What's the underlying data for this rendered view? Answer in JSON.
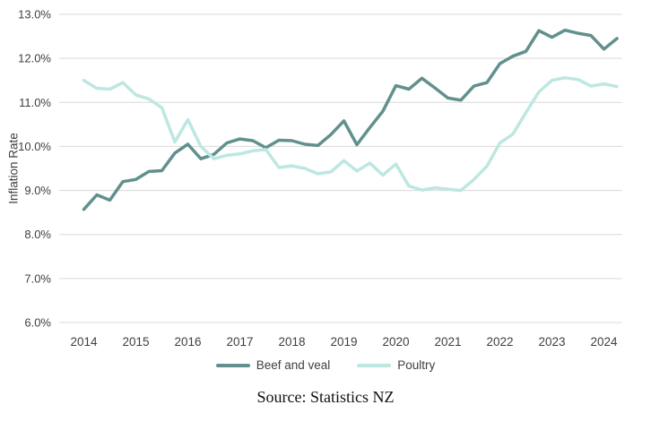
{
  "chart_data": {
    "type": "line",
    "title": "",
    "ylabel": "Inflation Rate",
    "xlabel": "",
    "frequency": "quarterly",
    "x_start": "2014 Q1",
    "x_end": "2024 Q2",
    "ylim": [
      6,
      13
    ],
    "grid": "horizontal",
    "legend_position": "bottom",
    "gridline_color": "#d9d9d9",
    "axis_text_color": "#404040",
    "y_tick_labels": [
      "6.0%",
      "7.0%",
      "8.0%",
      "9.0%",
      "10.0%",
      "11.0%",
      "12.0%",
      "13.0%"
    ],
    "x_tick_labels": [
      "2014",
      "2015",
      "2016",
      "2017",
      "2018",
      "2019",
      "2020",
      "2021",
      "2022",
      "2023",
      "2024"
    ],
    "series": [
      {
        "name": "Beef and veal",
        "color": "#61908d",
        "values": [
          8.57,
          8.9,
          8.78,
          9.2,
          9.25,
          9.43,
          9.45,
          9.85,
          10.05,
          9.72,
          9.82,
          10.08,
          10.17,
          10.13,
          9.97,
          10.14,
          10.13,
          10.05,
          10.02,
          10.27,
          10.58,
          10.04,
          10.43,
          10.8,
          11.38,
          11.3,
          11.55,
          11.33,
          11.1,
          11.05,
          11.37,
          11.45,
          11.88,
          12.05,
          12.16,
          12.63,
          12.48,
          12.64,
          12.57,
          12.52,
          12.21,
          12.45
        ]
      },
      {
        "name": "Poultry",
        "color": "#bde7e1",
        "values": [
          11.5,
          11.32,
          11.3,
          11.45,
          11.17,
          11.08,
          10.88,
          10.1,
          10.61,
          10.0,
          9.72,
          9.8,
          9.83,
          9.9,
          9.93,
          9.52,
          9.56,
          9.5,
          9.38,
          9.42,
          9.68,
          9.44,
          9.62,
          9.35,
          9.6,
          9.1,
          9.01,
          9.06,
          9.03,
          9.0,
          9.25,
          9.55,
          10.08,
          10.28,
          10.77,
          11.24,
          11.5,
          11.56,
          11.52,
          11.37,
          11.42,
          11.36
        ]
      }
    ]
  },
  "source_note": "Source: Statistics NZ"
}
